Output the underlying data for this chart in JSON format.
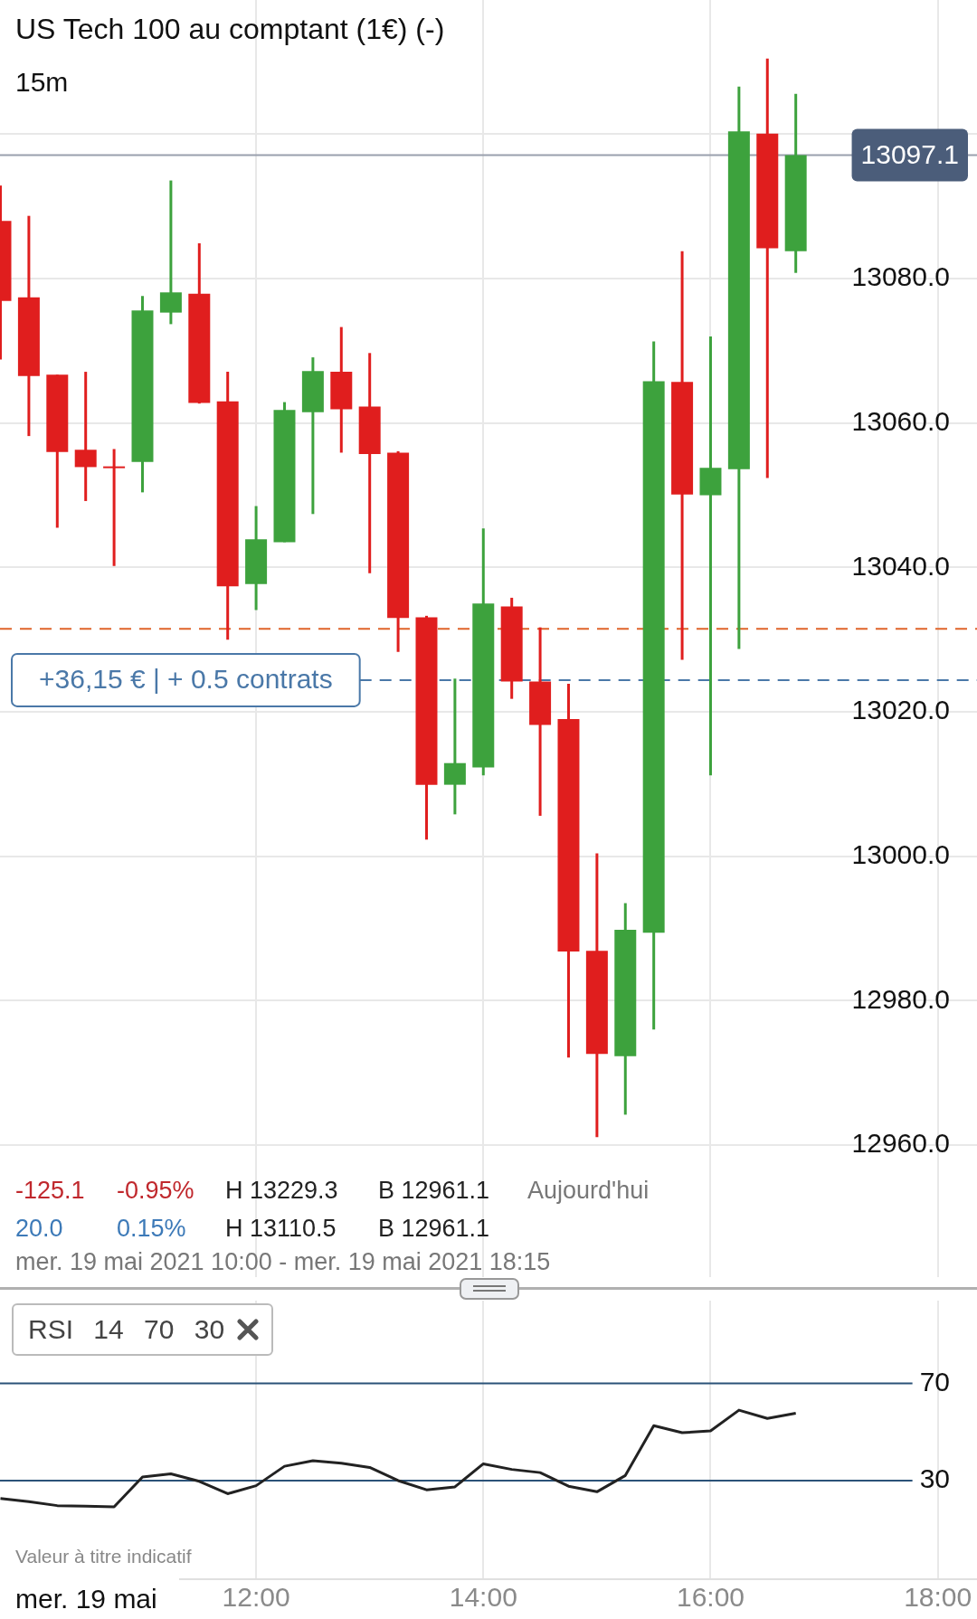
{
  "chart_data": [
    {
      "type": "candlestick",
      "title": "US Tech 100 au comptant (1€) (-)",
      "subtitle": "15m",
      "x": [
        9.75,
        10,
        10.25,
        10.5,
        10.75,
        11,
        11.25,
        11.5,
        11.75,
        12,
        12.25,
        12.5,
        12.75,
        13,
        13.25,
        13.5,
        13.75,
        14,
        14.25,
        14.5,
        14.75,
        15,
        15.25,
        15.5,
        15.75,
        16,
        16.25,
        16.5,
        16.75
      ],
      "ohlc": [
        [
          13088.0,
          13092.9,
          13068.8,
          13076.9
        ],
        [
          13077.4,
          13088.7,
          13058.2,
          13066.5
        ],
        [
          13066.7,
          13066.7,
          13045.5,
          13056.0
        ],
        [
          13056.3,
          13067.1,
          13049.2,
          13053.9
        ],
        [
          13054.0,
          13056.4,
          13040.2,
          13053.8
        ],
        [
          13054.6,
          13077.6,
          13050.4,
          13075.6
        ],
        [
          13075.3,
          13093.6,
          13073.7,
          13078.1
        ],
        [
          13077.9,
          13084.9,
          13062.7,
          13062.8
        ],
        [
          13063.0,
          13067.1,
          13030.0,
          13037.4
        ],
        [
          13037.7,
          13048.5,
          13034.1,
          13043.9
        ],
        [
          13043.5,
          13062.9,
          13043.5,
          13061.8
        ],
        [
          13061.5,
          13069.1,
          13047.4,
          13067.2
        ],
        [
          13067.1,
          13073.3,
          13055.9,
          13061.9
        ],
        [
          13062.3,
          13069.7,
          13039.2,
          13055.7
        ],
        [
          13055.9,
          13056.1,
          13028.3,
          13033.0
        ],
        [
          13033.1,
          13033.3,
          13002.3,
          13009.9
        ],
        [
          13009.9,
          13024.6,
          13005.8,
          13012.9
        ],
        [
          13012.3,
          13045.4,
          13011.2,
          13035.0
        ],
        [
          13034.6,
          13035.8,
          13021.8,
          13024.2
        ],
        [
          13024.2,
          13031.7,
          13005.6,
          13018.2
        ],
        [
          13019.0,
          13023.9,
          12972.1,
          12986.8
        ],
        [
          12986.9,
          13000.4,
          12961.1,
          12972.6
        ],
        [
          12972.3,
          12993.5,
          12964.2,
          12989.8
        ],
        [
          12989.4,
          13071.3,
          12976.0,
          13065.8
        ],
        [
          13065.7,
          13083.8,
          13027.2,
          13050.1
        ],
        [
          13050.0,
          13072.0,
          13011.2,
          13053.8
        ],
        [
          13053.6,
          13106.6,
          13028.7,
          13100.4
        ],
        [
          13100.1,
          13110.5,
          13052.4,
          13084.2
        ],
        [
          13083.8,
          13105.6,
          13080.8,
          13097.1
        ]
      ],
      "colors": [
        "#e01e1e",
        "#e01e1e",
        "#e01e1e",
        "#e01e1e",
        "#e01e1e",
        "#3da23d",
        "#3da23d",
        "#e01e1e",
        "#e01e1e",
        "#3da23d",
        "#3da23d",
        "#3da23d",
        "#e01e1e",
        "#e01e1e",
        "#e01e1e",
        "#e01e1e",
        "#3da23d",
        "#3da23d",
        "#e01e1e",
        "#e01e1e",
        "#e01e1e",
        "#e01e1e",
        "#3da23d",
        "#3da23d",
        "#e01e1e",
        "#3da23d",
        "#3da23d",
        "#e01e1e",
        "#3da23d"
      ],
      "xlim": [
        9.746,
        18.345
      ],
      "xticks": [
        {
          "value": 12,
          "label": null
        },
        {
          "value": 14,
          "label": null
        },
        {
          "value": 16,
          "label": null
        },
        {
          "value": 18,
          "label": null
        }
      ],
      "ylim": [
        12941.7,
        13118.6
      ],
      "yticks": [
        {
          "value": 12960,
          "label": "12960.0"
        },
        {
          "value": 12980,
          "label": "12980.0"
        },
        {
          "value": 13000,
          "label": "13000.0"
        },
        {
          "value": 13020,
          "label": "13020.0"
        },
        {
          "value": 13040,
          "label": "13040.0"
        },
        {
          "value": 13060,
          "label": "13060.0"
        },
        {
          "value": 13080,
          "label": "13080.0"
        },
        {
          "value": 13100,
          "label": null
        }
      ],
      "tick_labels": "y",
      "grid": true,
      "ref_lines": [
        {
          "axis": "y",
          "value": 13097.1,
          "label": "13097.1",
          "color": "#9aa0ad"
        },
        {
          "axis": "y",
          "value": 13031.5,
          "color": "#e0642a",
          "line_style": "dashed"
        },
        {
          "axis": "y",
          "value": 13024.4,
          "label": "+36,15 € | + 0.5 contrats",
          "color": "#4a78a8",
          "line_style": "dashed"
        }
      ],
      "annotations": [
        "-125.1",
        "-0.95%",
        "H 13229.3",
        "B 12961.1",
        "Aujourd'hui",
        "20.0",
        "0.15%",
        "H 13110.5",
        "B 12961.1",
        "mer. 19 mai 2021 10:00 - mer. 19 mai 2021 18:15"
      ]
    },
    {
      "type": "line",
      "title": "RSI 14 70 30",
      "x": [
        9.75,
        10,
        10.25,
        10.5,
        10.75,
        11,
        11.25,
        11.5,
        11.75,
        12,
        12.25,
        12.5,
        12.75,
        13,
        13.25,
        13.5,
        13.75,
        14,
        14.25,
        14.5,
        14.75,
        15,
        15.25,
        15.5,
        15.75,
        16,
        16.25,
        16.5,
        16.75
      ],
      "series": [
        {
          "color": "#222222",
          "values": [
            22.6,
            21.3,
            19.7,
            19.5,
            19.2,
            31.5,
            32.8,
            29.7,
            24.6,
            27.9,
            35.9,
            38.2,
            37.2,
            35.4,
            30.0,
            26.2,
            27.4,
            36.9,
            34.6,
            33.3,
            27.7,
            25.4,
            32.1,
            52.6,
            49.7,
            50.5,
            59.0,
            55.6,
            57.7
          ]
        }
      ],
      "xlim": [
        9.746,
        18.345
      ],
      "xticks": [
        {
          "value": 12,
          "label": "12:00"
        },
        {
          "value": 14,
          "label": "14:00"
        },
        {
          "value": 16,
          "label": "16:00"
        },
        {
          "value": 18,
          "label": "18:00"
        }
      ],
      "ylim": [
        -10.6,
        104.1
      ],
      "yticks": [
        30,
        70
      ],
      "grid": "x",
      "marker": "none",
      "ref_lines": [
        {
          "axis": "y",
          "value": 70,
          "color": "#2b5278"
        },
        {
          "axis": "y",
          "value": 30,
          "color": "#2b5278"
        }
      ],
      "annotations": [
        "Valeur à titre indicatif",
        "mer. 19 mai"
      ]
    }
  ]
}
